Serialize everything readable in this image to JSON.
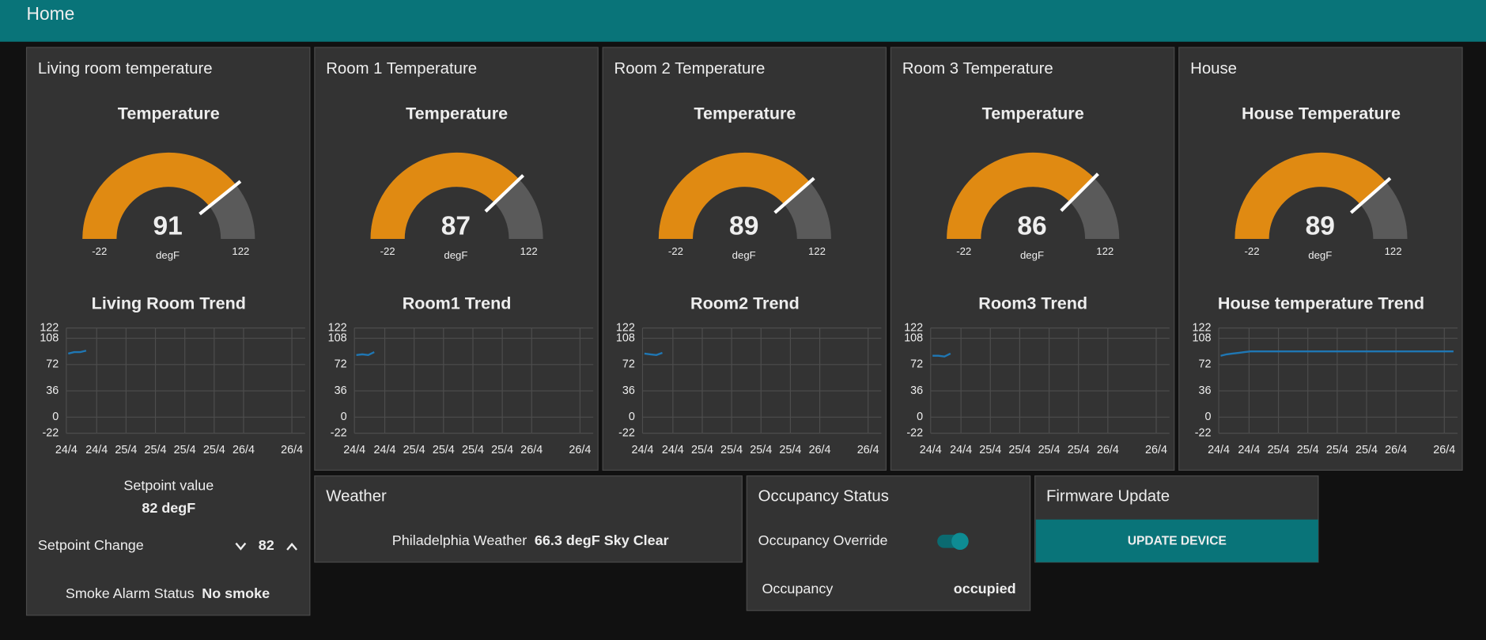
{
  "header": {
    "title": "Home"
  },
  "panels": [
    {
      "title": "Living room temperature",
      "gauge": {
        "title": "Temperature",
        "value": 91,
        "min": -22,
        "max": 122,
        "units": "degF"
      },
      "trend": {
        "title": "Living Room Trend",
        "ylim": [
          -22,
          122
        ],
        "yticks": [
          -22,
          0,
          36,
          72,
          108,
          122
        ],
        "xticks": [
          "24/4",
          "24/4",
          "25/4",
          "25/4",
          "25/4",
          "25/4",
          "26/4",
          "26/4"
        ],
        "values": [
          87,
          89,
          89,
          91
        ]
      }
    },
    {
      "title": "Room 1 Temperature",
      "gauge": {
        "title": "Temperature",
        "value": 87,
        "min": -22,
        "max": 122,
        "units": "degF"
      },
      "trend": {
        "title": "Room1 Trend",
        "ylim": [
          -22,
          122
        ],
        "yticks": [
          -22,
          0,
          36,
          72,
          108,
          122
        ],
        "xticks": [
          "24/4",
          "24/4",
          "25/4",
          "25/4",
          "25/4",
          "25/4",
          "26/4",
          "26/4"
        ],
        "values": [
          85,
          86,
          85,
          89
        ]
      }
    },
    {
      "title": "Room 2 Temperature",
      "gauge": {
        "title": "Temperature",
        "value": 89,
        "min": -22,
        "max": 122,
        "units": "degF"
      },
      "trend": {
        "title": "Room2 Trend",
        "ylim": [
          -22,
          122
        ],
        "yticks": [
          -22,
          0,
          36,
          72,
          108,
          122
        ],
        "xticks": [
          "24/4",
          "24/4",
          "25/4",
          "25/4",
          "25/4",
          "25/4",
          "26/4",
          "26/4"
        ],
        "values": [
          87,
          86,
          85,
          88
        ]
      }
    },
    {
      "title": "Room 3 Temperature",
      "gauge": {
        "title": "Temperature",
        "value": 86,
        "min": -22,
        "max": 122,
        "units": "degF"
      },
      "trend": {
        "title": "Room3 Trend",
        "ylim": [
          -22,
          122
        ],
        "yticks": [
          -22,
          0,
          36,
          72,
          108,
          122
        ],
        "xticks": [
          "24/4",
          "24/4",
          "25/4",
          "25/4",
          "25/4",
          "25/4",
          "26/4",
          "26/4"
        ],
        "values": [
          84,
          84,
          83,
          87
        ]
      }
    },
    {
      "title": "House",
      "gauge": {
        "title": "House Temperature",
        "value": 89,
        "min": -22,
        "max": 122,
        "units": "degF"
      },
      "trend": {
        "title": "House temperature Trend",
        "ylim": [
          -22,
          122
        ],
        "yticks": [
          -22,
          0,
          36,
          72,
          108,
          122
        ],
        "xticks": [
          "24/4",
          "24/4",
          "25/4",
          "25/4",
          "25/4",
          "25/4",
          "26/4",
          "26/4"
        ],
        "values": [
          84,
          86,
          87,
          88,
          89,
          90,
          90,
          90,
          90,
          90,
          90,
          90,
          90,
          90,
          90,
          90,
          90,
          90,
          90,
          90,
          90,
          90,
          90,
          90,
          90,
          90,
          90,
          90,
          90,
          90,
          90,
          90,
          90,
          90,
          90,
          90,
          90,
          90,
          90,
          90
        ]
      }
    }
  ],
  "setpoint": {
    "label": "Setpoint value",
    "value": "82 degF"
  },
  "setpoint_change": {
    "label": "Setpoint Change",
    "value": 82
  },
  "smoke": {
    "label": "Smoke Alarm Status",
    "value": "No smoke"
  },
  "weather": {
    "title": "Weather",
    "label": "Philadelphia Weather",
    "value": "66.3 degF Sky Clear"
  },
  "occupancy": {
    "title": "Occupancy Status",
    "override_label": "Occupancy Override",
    "override": true,
    "label": "Occupancy",
    "value": "occupied"
  },
  "firmware": {
    "title": "Firmware Update",
    "button": "UPDATE DEVICE"
  }
}
